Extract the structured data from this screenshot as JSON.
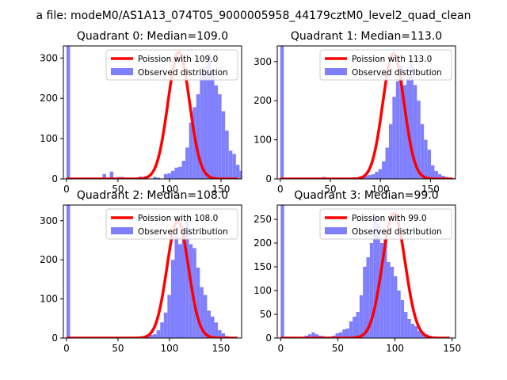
{
  "suptitle": "a file: modeM0/AS1A13_074T05_9000005958_44179cztM0_level2_quad_clean",
  "colors": {
    "hist": "#8080ff",
    "fit": "#ff0000",
    "axes": "#000000"
  },
  "chart_data": [
    {
      "type": "bar+line",
      "title": "Quadrant 0: Median=109.0",
      "xlim": [
        -3,
        170
      ],
      "ylim": [
        0,
        330
      ],
      "xticks": [
        0,
        50,
        100,
        150
      ],
      "yticks": [
        0,
        100,
        200,
        300
      ],
      "legend_position": "top-right",
      "fit": {
        "label": "Poission with 109.0",
        "mean": 109.0,
        "peak": 315,
        "range": [
          0,
          166
        ]
      },
      "hist": {
        "label": "Observed distribution",
        "bin_width": 3.5,
        "x_start": 0,
        "counts": [
          400,
          0,
          0,
          0,
          0,
          0,
          0,
          0,
          0,
          0,
          12,
          3,
          18,
          0,
          5,
          5,
          0,
          0,
          0,
          3,
          6,
          4,
          0,
          0,
          5,
          3,
          0,
          12,
          14,
          20,
          28,
          30,
          45,
          78,
          140,
          178,
          210,
          260,
          280,
          312,
          272,
          232,
          210,
          168,
          120,
          70,
          62,
          35,
          20,
          12,
          5,
          3,
          2,
          2,
          0,
          0,
          0
        ]
      }
    },
    {
      "type": "bar+line",
      "title": "Quadrant 1: Median=113.0",
      "xlim": [
        -3,
        175
      ],
      "ylim": [
        0,
        340
      ],
      "xticks": [
        0,
        50,
        100,
        150
      ],
      "yticks": [
        0,
        100,
        200,
        300
      ],
      "legend_position": "top-right",
      "fit": {
        "label": "Poission with 113.0",
        "mean": 113.0,
        "peak": 320,
        "range": [
          0,
          172
        ]
      },
      "hist": {
        "label": "Observed distribution",
        "bin_width": 3.5,
        "x_start": 0,
        "counts": [
          400,
          0,
          0,
          0,
          0,
          0,
          0,
          0,
          0,
          0,
          0,
          0,
          5,
          2,
          0,
          0,
          0,
          0,
          0,
          0,
          2,
          3,
          4,
          5,
          8,
          10,
          12,
          18,
          25,
          45,
          80,
          140,
          210,
          250,
          290,
          240,
          260,
          300,
          240,
          200,
          140,
          100,
          75,
          35,
          20,
          12,
          8,
          5,
          3,
          2,
          0
        ]
      }
    },
    {
      "type": "bar+line",
      "title": "Quadrant 2: Median=108.0",
      "xlim": [
        -3,
        170
      ],
      "ylim": [
        0,
        340
      ],
      "xticks": [
        0,
        50,
        100,
        150
      ],
      "yticks": [
        0,
        100,
        200,
        300
      ],
      "legend_position": "top-right",
      "fit": {
        "label": "Poission with 108.0",
        "mean": 108.0,
        "peak": 300,
        "range": [
          0,
          166
        ]
      },
      "hist": {
        "label": "Observed distribution",
        "bin_width": 3.5,
        "x_start": 0,
        "counts": [
          400,
          0,
          0,
          0,
          0,
          0,
          0,
          0,
          0,
          0,
          2,
          0,
          0,
          0,
          0,
          0,
          0,
          0,
          0,
          2,
          3,
          4,
          5,
          8,
          10,
          20,
          40,
          65,
          110,
          200,
          260,
          240,
          280,
          300,
          240,
          230,
          180,
          130,
          110,
          70,
          55,
          40,
          20,
          12,
          5,
          3,
          2,
          0
        ]
      }
    },
    {
      "type": "bar+line",
      "title": "Quadrant 3: Median=99.0",
      "xlim": [
        -3,
        153
      ],
      "ylim": [
        0,
        280
      ],
      "xticks": [
        0,
        50,
        100,
        150
      ],
      "yticks": [
        0,
        50,
        100,
        150,
        200,
        250
      ],
      "legend_position": "top-right",
      "fit": {
        "label": "Poission with 99.0",
        "mean": 99.0,
        "peak": 262,
        "range": [
          0,
          148
        ]
      },
      "hist": {
        "label": "Observed distribution",
        "bin_width": 3.0,
        "x_start": 0,
        "counts": [
          400,
          0,
          0,
          0,
          0,
          0,
          0,
          5,
          8,
          12,
          8,
          5,
          4,
          0,
          3,
          5,
          10,
          12,
          18,
          20,
          35,
          45,
          55,
          90,
          150,
          170,
          200,
          260,
          240,
          200,
          210,
          160,
          150,
          130,
          100,
          80,
          55,
          40,
          30,
          25,
          15,
          10,
          8,
          5,
          3,
          2,
          0,
          0,
          0,
          0
        ]
      }
    }
  ]
}
